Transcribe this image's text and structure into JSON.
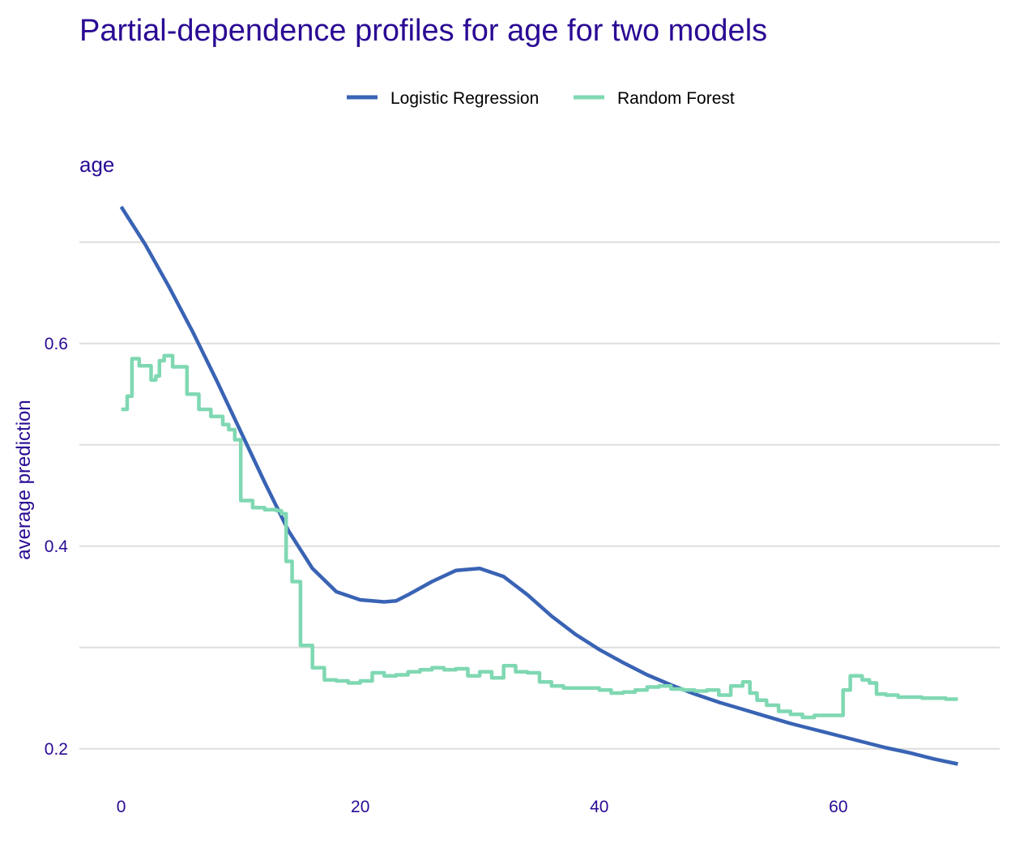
{
  "chart_data": {
    "type": "line",
    "title": "Partial-dependence profiles for age for two models",
    "panel_title": "age",
    "xlabel": "",
    "ylabel": "average prediction",
    "xlim": [
      -3.5,
      73.5
    ],
    "ylim": [
      0.175,
      0.755
    ],
    "x_ticks": [
      0,
      20,
      40,
      60
    ],
    "x_tick_labels": [
      "0",
      "20",
      "40",
      "60"
    ],
    "y_ticks": [
      0.2,
      0.4,
      0.6
    ],
    "y_tick_labels": [
      "0.2",
      "0.4",
      "0.6"
    ],
    "y_gridlines": [
      0.2,
      0.3,
      0.4,
      0.5,
      0.6,
      0.7
    ],
    "grid": true,
    "legend_position": "top",
    "series": [
      {
        "name": "Logistic Regression",
        "color": "#3963b4",
        "x": [
          0,
          2,
          4,
          6,
          8,
          10,
          12,
          14,
          16,
          18,
          20,
          22,
          23,
          24,
          26,
          28,
          30,
          32,
          34,
          36,
          38,
          40,
          42,
          44,
          46,
          48,
          50,
          52,
          54,
          56,
          58,
          60,
          62,
          64,
          66,
          68,
          70
        ],
        "y": [
          0.735,
          0.698,
          0.656,
          0.611,
          0.563,
          0.513,
          0.463,
          0.415,
          0.378,
          0.355,
          0.347,
          0.345,
          0.346,
          0.352,
          0.365,
          0.376,
          0.378,
          0.37,
          0.352,
          0.331,
          0.313,
          0.298,
          0.285,
          0.273,
          0.263,
          0.254,
          0.246,
          0.239,
          0.232,
          0.225,
          0.219,
          0.213,
          0.207,
          0.201,
          0.196,
          0.19,
          0.185
        ]
      },
      {
        "name": "Random Forest",
        "color": "#7fd8b2",
        "x": [
          0,
          0.5,
          0.9,
          1.5,
          2.5,
          2.9,
          3.2,
          3.6,
          4.3,
          4.7,
          5.5,
          6.5,
          7.5,
          8.5,
          9.0,
          9.5,
          10.0,
          11.0,
          12.0,
          13.0,
          13.4,
          13.8,
          14.3,
          15.0,
          16.0,
          17.0,
          18.0,
          19.0,
          20.0,
          21.0,
          22.0,
          23.0,
          24.0,
          25.0,
          26.0,
          27.0,
          28.0,
          29.0,
          30.0,
          31.0,
          32.0,
          33.0,
          34.0,
          35.0,
          36.0,
          37.0,
          38.0,
          39.0,
          40.0,
          41.0,
          42.0,
          43.0,
          44.0,
          45.0,
          46.0,
          47.0,
          48.0,
          49.0,
          50.0,
          51.0,
          52.0,
          52.6,
          53.2,
          54.0,
          55.0,
          56.0,
          57.0,
          58.0,
          59.0,
          60.0,
          60.4,
          61.0,
          62.0,
          62.6,
          63.2,
          64.0,
          65.0,
          66.0,
          67.0,
          68.0,
          69.0,
          70.0
        ],
        "y": [
          0.535,
          0.548,
          0.585,
          0.578,
          0.564,
          0.568,
          0.583,
          0.588,
          0.577,
          0.577,
          0.55,
          0.535,
          0.528,
          0.52,
          0.515,
          0.505,
          0.445,
          0.438,
          0.436,
          0.435,
          0.432,
          0.385,
          0.365,
          0.302,
          0.28,
          0.268,
          0.267,
          0.265,
          0.267,
          0.275,
          0.272,
          0.273,
          0.276,
          0.278,
          0.28,
          0.278,
          0.279,
          0.272,
          0.276,
          0.27,
          0.282,
          0.276,
          0.275,
          0.266,
          0.262,
          0.26,
          0.26,
          0.26,
          0.258,
          0.255,
          0.256,
          0.258,
          0.261,
          0.262,
          0.259,
          0.258,
          0.257,
          0.258,
          0.253,
          0.262,
          0.266,
          0.255,
          0.248,
          0.243,
          0.237,
          0.234,
          0.231,
          0.233,
          0.233,
          0.233,
          0.258,
          0.272,
          0.268,
          0.265,
          0.254,
          0.253,
          0.251,
          0.251,
          0.25,
          0.25,
          0.249,
          0.249
        ]
      }
    ]
  }
}
